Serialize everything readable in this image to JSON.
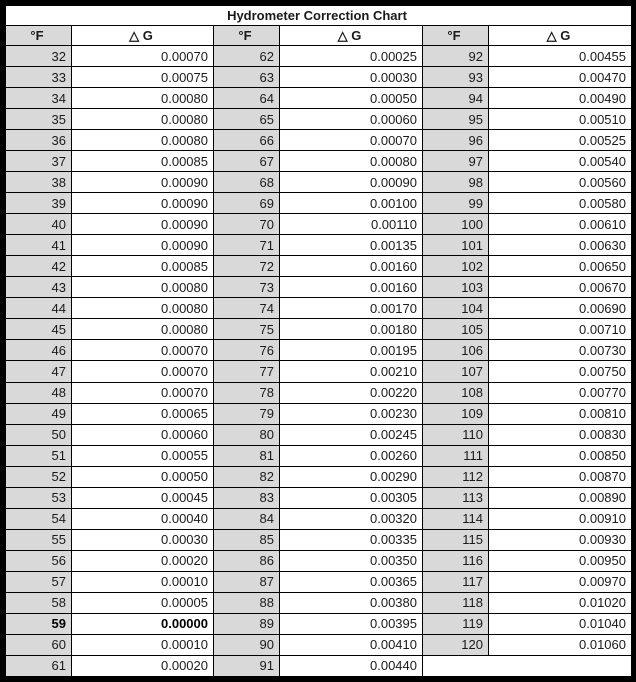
{
  "title": "Hydrometer Correction Chart",
  "colors": {
    "header_fill": "#d9d9d9",
    "border": "#000000",
    "cell_fill": "#ffffff"
  },
  "chart_data": {
    "type": "table",
    "title": "Hydrometer Correction Chart",
    "column_headers": [
      "°F",
      "△ G",
      "°F",
      "△ G",
      "°F",
      "△ G"
    ],
    "bold_entry": {
      "temp_f": 59,
      "delta_g": "0.00000"
    },
    "groups": [
      {
        "temps_f": [
          32,
          33,
          34,
          35,
          36,
          37,
          38,
          39,
          40,
          41,
          42,
          43,
          44,
          45,
          46,
          47,
          48,
          49,
          50,
          51,
          52,
          53,
          54,
          55,
          56,
          57,
          58,
          59,
          60,
          61
        ],
        "delta_g": [
          "0.00070",
          "0.00075",
          "0.00080",
          "0.00080",
          "0.00080",
          "0.00085",
          "0.00090",
          "0.00090",
          "0.00090",
          "0.00090",
          "0.00085",
          "0.00080",
          "0.00080",
          "0.00080",
          "0.00070",
          "0.00070",
          "0.00070",
          "0.00065",
          "0.00060",
          "0.00055",
          "0.00050",
          "0.00045",
          "0.00040",
          "0.00030",
          "0.00020",
          "0.00010",
          "0.00005",
          "0.00000",
          "0.00010",
          "0.00020"
        ]
      },
      {
        "temps_f": [
          62,
          63,
          64,
          65,
          66,
          67,
          68,
          69,
          70,
          71,
          72,
          73,
          74,
          75,
          76,
          77,
          78,
          79,
          80,
          81,
          82,
          83,
          84,
          85,
          86,
          87,
          88,
          89,
          90,
          91
        ],
        "delta_g": [
          "0.00025",
          "0.00030",
          "0.00050",
          "0.00060",
          "0.00070",
          "0.00080",
          "0.00090",
          "0.00100",
          "0.00110",
          "0.00135",
          "0.00160",
          "0.00160",
          "0.00170",
          "0.00180",
          "0.00195",
          "0.00210",
          "0.00220",
          "0.00230",
          "0.00245",
          "0.00260",
          "0.00290",
          "0.00305",
          "0.00320",
          "0.00335",
          "0.00350",
          "0.00365",
          "0.00380",
          "0.00395",
          "0.00410",
          "0.00440"
        ]
      },
      {
        "temps_f": [
          92,
          93,
          94,
          95,
          96,
          97,
          98,
          99,
          100,
          101,
          102,
          103,
          104,
          105,
          106,
          107,
          108,
          109,
          110,
          111,
          112,
          113,
          114,
          115,
          116,
          117,
          118,
          119,
          120
        ],
        "delta_g": [
          "0.00455",
          "0.00470",
          "0.00490",
          "0.00510",
          "0.00525",
          "0.00540",
          "0.00560",
          "0.00580",
          "0.00610",
          "0.00630",
          "0.00650",
          "0.00670",
          "0.00690",
          "0.00710",
          "0.00730",
          "0.00750",
          "0.00770",
          "0.00810",
          "0.00830",
          "0.00850",
          "0.00870",
          "0.00890",
          "0.00910",
          "0.00930",
          "0.00950",
          "0.00970",
          "0.01020",
          "0.01040",
          "0.01060"
        ]
      }
    ]
  }
}
